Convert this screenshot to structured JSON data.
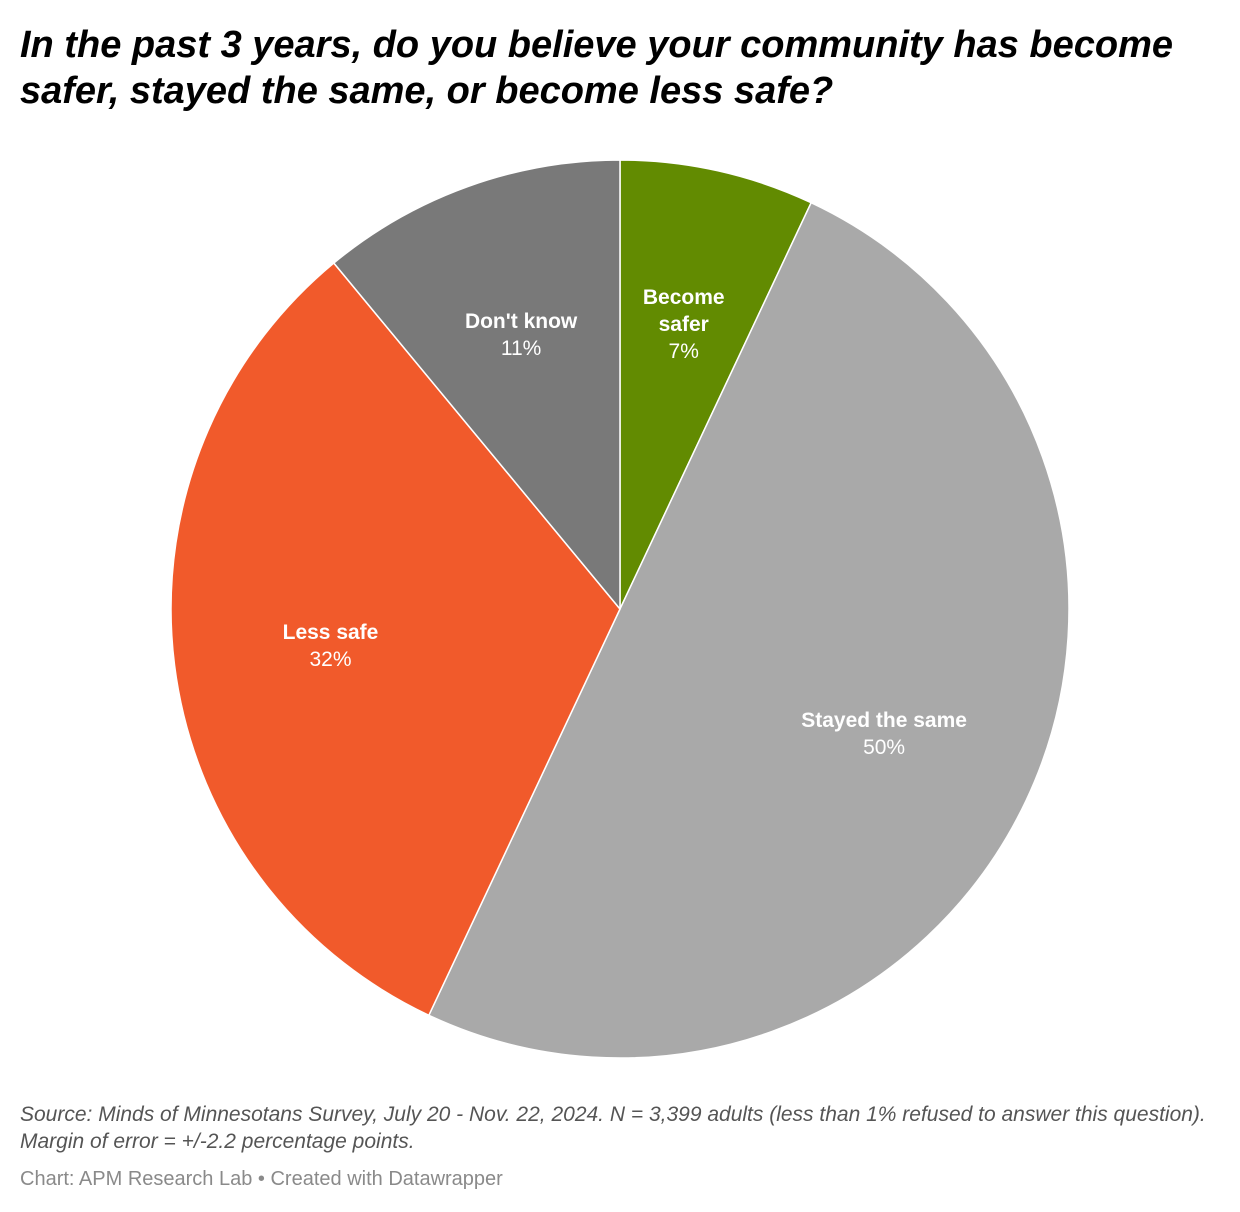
{
  "title": "In the past 3 years, do you believe your community has become safer, stayed the same, or become less safe?",
  "notes": "Source: Minds of Minnesotans Survey, July 20 - Nov. 22, 2024. N = 3,399 adults (less than 1% refused to answer this question). Margin of error = +/-2.2 percentage points.",
  "footer": {
    "credit": "Chart: APM Research Lab",
    "separator": "•",
    "tool": "Created with Datawrapper"
  },
  "chart_data": {
    "type": "pie",
    "start": "12 o'clock",
    "direction": "clockwise",
    "slices": [
      {
        "label": "Become safer",
        "value": 7,
        "value_label": "7%",
        "color": "#628b01"
      },
      {
        "label": "Stayed the same",
        "value": 50,
        "value_label": "50%",
        "color": "#a9a9a9"
      },
      {
        "label": "Less safe",
        "value": 32,
        "value_label": "32%",
        "color": "#f15a2b"
      },
      {
        "label": "Don't know",
        "value": 11,
        "value_label": "11%",
        "color": "#797979"
      }
    ]
  }
}
